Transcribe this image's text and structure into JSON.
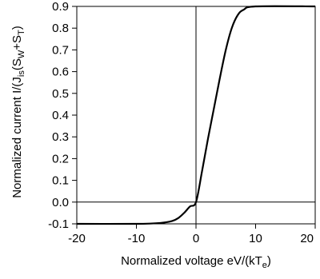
{
  "chart_data": {
    "type": "line",
    "title": "",
    "xlabel_main": "Normalized voltage  eV/(kT",
    "xlabel_sub": "e",
    "xlabel_end": ")",
    "ylabel_main": "Normalized current  I/(J",
    "ylabel_sub1": "is",
    "ylabel_mid": "(S",
    "ylabel_sub2": "W",
    "ylabel_plus": "+S",
    "ylabel_sub3": "T",
    "ylabel_end": ")",
    "xlim": [
      -20,
      20
    ],
    "ylim": [
      -0.1,
      0.9
    ],
    "x_ticks": [
      -20,
      -10,
      0,
      10,
      20
    ],
    "y_ticks": [
      0.9,
      0.8,
      0.7,
      0.6,
      0.5,
      0.4,
      0.3,
      0.2,
      0.1,
      0.0,
      -0.1
    ],
    "x_tick_labels": [
      "-20",
      "-10",
      "0",
      "10",
      "20"
    ],
    "y_tick_labels": [
      "0.9",
      "0.8",
      "0.7",
      "0.6",
      "0.5",
      "0.4",
      "0.3",
      "0.2",
      "0.1",
      "0.0",
      "-0.1"
    ],
    "reference_lines": {
      "x0": true,
      "y0": true
    },
    "grid": false,
    "series": [
      {
        "x": [
          -20,
          -10,
          -6,
          -4,
          -3,
          -2,
          -1,
          0,
          1,
          2,
          3,
          4,
          5,
          6,
          7,
          8,
          10,
          20
        ],
        "y": [
          -0.1,
          -0.1,
          -0.096,
          -0.087,
          -0.074,
          -0.05,
          -0.02,
          0.0,
          0.14,
          0.29,
          0.43,
          0.57,
          0.7,
          0.8,
          0.86,
          0.885,
          0.9,
          0.9
        ]
      }
    ]
  }
}
